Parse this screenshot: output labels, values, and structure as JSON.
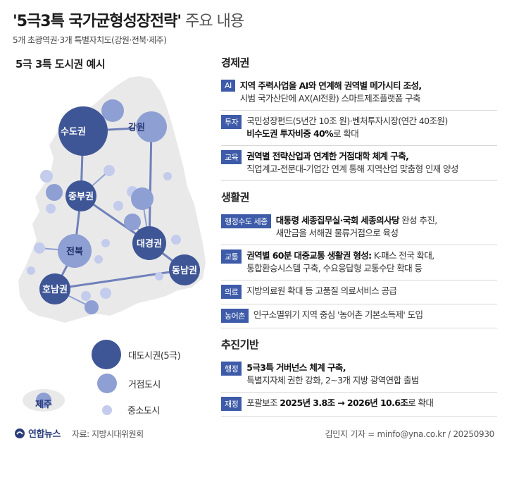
{
  "title": {
    "main": "'5극3특 국가균형성장전략'",
    "rest": " 주요 내용"
  },
  "subtitle": "5개 초광역권·3개 특별자치도(강원·전북·제주)",
  "map": {
    "heading": "5극 3특 도시권 예시",
    "regions": {
      "sudo": "수도권",
      "gangwon": "강원",
      "jungbu": "중부권",
      "jeonbuk": "전북",
      "daegyeong": "대경권",
      "dongnam": "동남권",
      "honam": "호남권",
      "jeju": "제주"
    },
    "colors": {
      "land": "#e9e9e9",
      "large_node": "#3f5696",
      "medium_node": "#8e9fd3",
      "small_node": "#c3ccec",
      "link": "#5b70b3"
    }
  },
  "legend": {
    "large": "대도시권(5극)",
    "medium": "거점도시",
    "small": "중소도시"
  },
  "sections": {
    "economy": {
      "title": "경제권",
      "rows": [
        {
          "tag": "AI",
          "bold": "지역 주력사업을 AI와 연계해 권역별 메가시티 조성,",
          "normal": "시범 국가산단에 AX(AI전환) 스마트제조플랫폼 구축"
        },
        {
          "tag": "투자",
          "normal1": "국민성장펀드(5년간 10조 원)·벤처투자시장(연간 40조원)",
          "bold": "비수도권 투자비중 40%",
          "normal2": "로 확대"
        },
        {
          "tag": "교육",
          "bold": "권역별 전략산업과 연계한 거점대학 체계 구축,",
          "normal": "직업계고-전문대-기업간 연계 통해 지역산업 맞춤형 인재 양성"
        }
      ]
    },
    "living": {
      "title": "생활권",
      "rows": [
        {
          "tag": "행정수도 세종",
          "bold": "대통령 세종집무실·국회 세종의사당",
          "normal1": " 완성 추진,",
          "normal2": "새만금을 서해권 물류거점으로 육성"
        },
        {
          "tag": "교통",
          "bold": "권역별 60분 대중교통 생활권 형성:",
          "normal1": " K-패스 전국 확대,",
          "normal2": "통합환승시스템 구축, 수요응답형 교통수단 확대 등"
        },
        {
          "tag": "의료",
          "normal": "지방의료원 확대 등 고품질 의료서비스 공급"
        },
        {
          "tag": "농어촌",
          "normal": "인구소멸위기 지역 중심 '농어촌 기본소득제' 도입"
        }
      ]
    },
    "foundation": {
      "title": "추진기반",
      "rows": [
        {
          "tag": "행정",
          "bold": "5극3특 거버넌스 체계 구축,",
          "normal": "특별지자체 권한 강화, 2~3개 지방 광역연합 출범"
        },
        {
          "tag": "재정",
          "normal1": "포괄보조 ",
          "bold": "2025년 3.8조 → 2026년 10.6조",
          "normal2": "로 확대"
        }
      ]
    }
  },
  "footer": {
    "logo": "연합뉴스",
    "source": "자료: 지방시대위원회",
    "credit": "김민지 기자 = minfo@yna.co.kr / 20250930"
  }
}
